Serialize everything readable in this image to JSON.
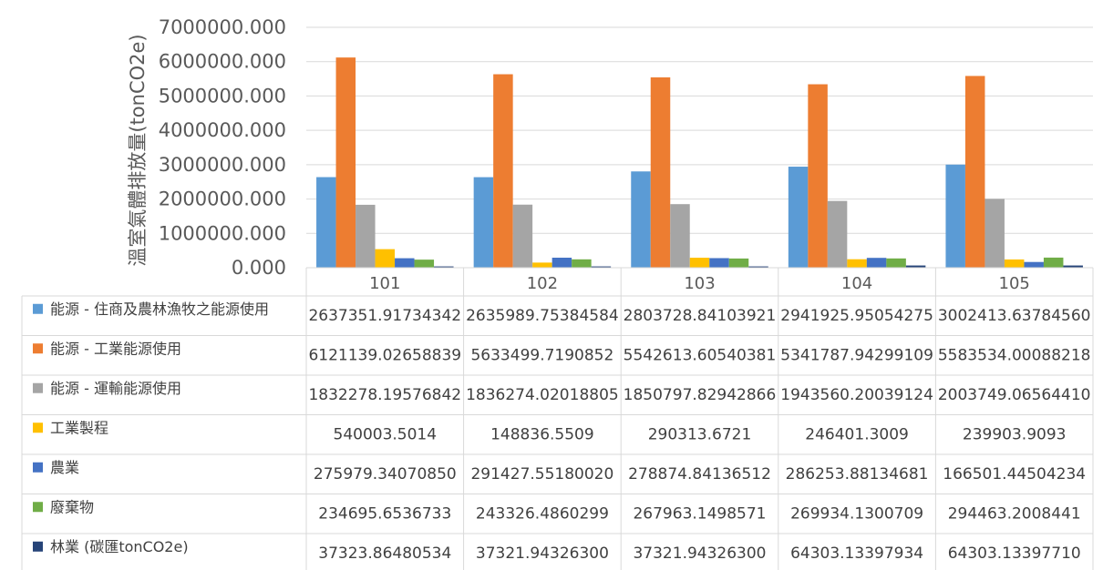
{
  "chart_data": {
    "type": "bar",
    "ylabel": "溫室氣體排放量(tonCO2e)",
    "ylim": [
      0,
      7000000
    ],
    "ytick_step": 1000000,
    "ytick_labels": [
      "0.000",
      "1000000.000",
      "2000000.000",
      "3000000.000",
      "4000000.000",
      "5000000.000",
      "6000000.000",
      "7000000.000"
    ],
    "grid": true,
    "legend_placement": "data-table-left",
    "categories": [
      "101",
      "102",
      "103",
      "104",
      "105"
    ],
    "series": [
      {
        "name": "能源 - 住商及農林漁牧之能源使用",
        "color": "#5B9BD5",
        "values": [
          2637351.91734342,
          2635989.75384584,
          2803728.84103921,
          2941925.95054275,
          3002413.6378456
        ],
        "labels": [
          "2637351.91734342",
          "2635989.75384584",
          "2803728.84103921",
          "2941925.95054275",
          "3002413.63784560"
        ]
      },
      {
        "name": "能源 - 工業能源使用",
        "color": "#ED7D31",
        "values": [
          6121139.02658839,
          5633499.7190852,
          5542613.60540381,
          5341787.94299109,
          5583534.00088218
        ],
        "labels": [
          "6121139.02658839",
          "5633499.7190852",
          "5542613.60540381",
          "5341787.94299109",
          "5583534.00088218"
        ]
      },
      {
        "name": "能源 - 運輸能源使用",
        "color": "#A5A5A5",
        "values": [
          1832278.19576842,
          1836274.02018805,
          1850797.82942866,
          1943560.20039124,
          2003749.0656441
        ],
        "labels": [
          "1832278.19576842",
          "1836274.02018805",
          "1850797.82942866",
          "1943560.20039124",
          "2003749.06564410"
        ]
      },
      {
        "name": "工業製程",
        "color": "#FFC000",
        "values": [
          540003.5014,
          148836.5509,
          290313.6721,
          246401.3009,
          239903.9093
        ],
        "labels": [
          "540003.5014",
          "148836.5509",
          "290313.6721",
          "246401.3009",
          "239903.9093"
        ]
      },
      {
        "name": "農業",
        "color": "#4472C4",
        "values": [
          275979.3407085,
          291427.5518002,
          278874.84136512,
          286253.88134681,
          166501.44504234
        ],
        "labels": [
          "275979.34070850",
          "291427.55180020",
          "278874.84136512",
          "286253.88134681",
          "166501.44504234"
        ]
      },
      {
        "name": "廢棄物",
        "color": "#70AD47",
        "values": [
          234695.6536733,
          243326.4860299,
          267963.1498571,
          269934.1300709,
          294463.2008441
        ],
        "labels": [
          "234695.6536733",
          "243326.4860299",
          "267963.1498571",
          "269934.1300709",
          "294463.2008441"
        ]
      },
      {
        "name": "林業 (碳匯tonCO2e)",
        "color": "#264478",
        "values": [
          37323.86480534,
          37321.943263,
          37321.943263,
          64303.13397934,
          64303.1339771
        ],
        "labels": [
          "37323.86480534",
          "37321.94326300",
          "37321.94326300",
          "64303.13397934",
          "64303.13397710"
        ]
      }
    ]
  }
}
